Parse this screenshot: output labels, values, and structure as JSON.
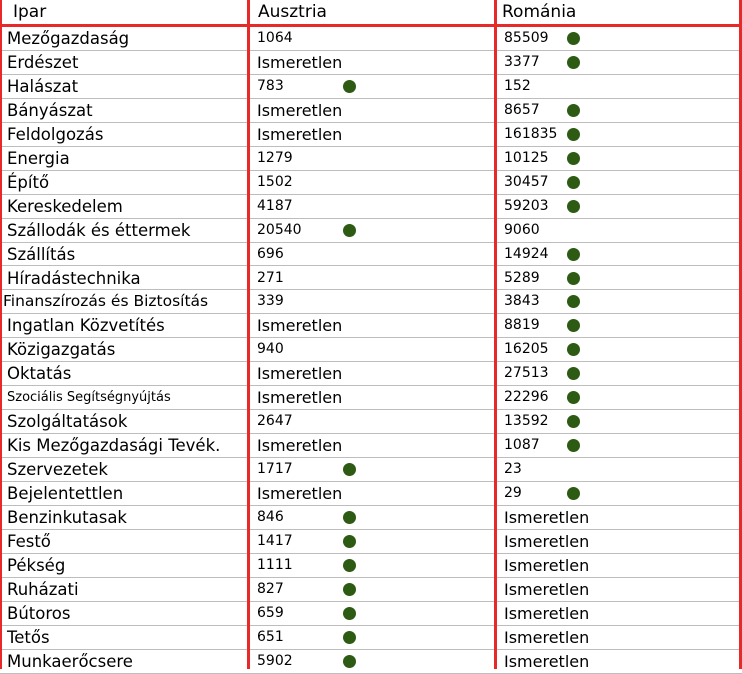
{
  "chart_data": {
    "type": "table",
    "columns": [
      "Ipar",
      "Ausztria",
      "Románia"
    ],
    "rows": [
      {
        "industry": "Mezőgazdaság",
        "austria": "1064",
        "romania": "85509",
        "dot_austria": false,
        "dot_romania": true
      },
      {
        "industry": "Erdészet",
        "austria": "Ismeretlen",
        "romania": "3377",
        "dot_austria": false,
        "dot_romania": true
      },
      {
        "industry": "Halászat",
        "austria": "783",
        "romania": "152",
        "dot_austria": true,
        "dot_romania": false
      },
      {
        "industry": "Bányászat",
        "austria": "Ismeretlen",
        "romania": "8657",
        "dot_austria": false,
        "dot_romania": true
      },
      {
        "industry": "Feldolgozás",
        "austria": "Ismeretlen",
        "romania": "161835",
        "dot_austria": false,
        "dot_romania": true
      },
      {
        "industry": "Energia",
        "austria": "1279",
        "romania": "10125",
        "dot_austria": false,
        "dot_romania": true
      },
      {
        "industry": "Építő",
        "austria": "1502",
        "romania": "30457",
        "dot_austria": false,
        "dot_romania": true
      },
      {
        "industry": "Kereskedelem",
        "austria": "4187",
        "romania": "59203",
        "dot_austria": false,
        "dot_romania": true
      },
      {
        "industry": "Szállodák és éttermek",
        "austria": "20540",
        "romania": "9060",
        "dot_austria": true,
        "dot_romania": false
      },
      {
        "industry": "Szállítás",
        "austria": "696",
        "romania": "14924",
        "dot_austria": false,
        "dot_romania": true
      },
      {
        "industry": "Híradástechnika",
        "austria": "271",
        "romania": "5289",
        "dot_austria": false,
        "dot_romania": true
      },
      {
        "industry": "Finanszírozás és Biztosítás",
        "austria": "339",
        "romania": "3843",
        "dot_austria": false,
        "dot_romania": true
      },
      {
        "industry": "Ingatlan Közvetítés",
        "austria": "Ismeretlen",
        "romania": "8819",
        "dot_austria": false,
        "dot_romania": true
      },
      {
        "industry": "Közigazgatás",
        "austria": "940",
        "romania": "16205",
        "dot_austria": false,
        "dot_romania": true
      },
      {
        "industry": "Oktatás",
        "austria": "Ismeretlen",
        "romania": "27513",
        "dot_austria": false,
        "dot_romania": true
      },
      {
        "industry": "Szociális Segítségnyújtás",
        "austria": "Ismeretlen",
        "romania": "22296",
        "dot_austria": false,
        "dot_romania": true
      },
      {
        "industry": "Szolgáltatások",
        "austria": "2647",
        "romania": "13592",
        "dot_austria": false,
        "dot_romania": true
      },
      {
        "industry": "Kis Mezőgazdasági Tevék.",
        "austria": "Ismeretlen",
        "romania": "1087",
        "dot_austria": false,
        "dot_romania": true
      },
      {
        "industry": "Szervezetek",
        "austria": "1717",
        "romania": "23",
        "dot_austria": true,
        "dot_romania": false
      },
      {
        "industry": "Bejelentettlen",
        "austria": "Ismeretlen",
        "romania": "29",
        "dot_austria": false,
        "dot_romania": true
      },
      {
        "industry": "Benzinkutasak",
        "austria": "846",
        "romania": "Ismeretlen",
        "dot_austria": true,
        "dot_romania": false
      },
      {
        "industry": "Festő",
        "austria": "1417",
        "romania": "Ismeretlen",
        "dot_austria": true,
        "dot_romania": false
      },
      {
        "industry": "Pékség",
        "austria": "1111",
        "romania": "Ismeretlen",
        "dot_austria": true,
        "dot_romania": false
      },
      {
        "industry": "Ruházati",
        "austria": "827",
        "romania": "Ismeretlen",
        "dot_austria": true,
        "dot_romania": false
      },
      {
        "industry": "Bútoros",
        "austria": "659",
        "romania": "Ismeretlen",
        "dot_austria": true,
        "dot_romania": false
      },
      {
        "industry": "Tetős",
        "austria": "651",
        "romania": "Ismeretlen",
        "dot_austria": true,
        "dot_romania": false
      },
      {
        "industry": "Munkaerőcsere",
        "austria": "5902",
        "romania": "Ismeretlen",
        "dot_austria": true,
        "dot_romania": false
      }
    ],
    "colors": {
      "grid_accent": "#e8292a",
      "marker": "#2e5b14"
    }
  }
}
